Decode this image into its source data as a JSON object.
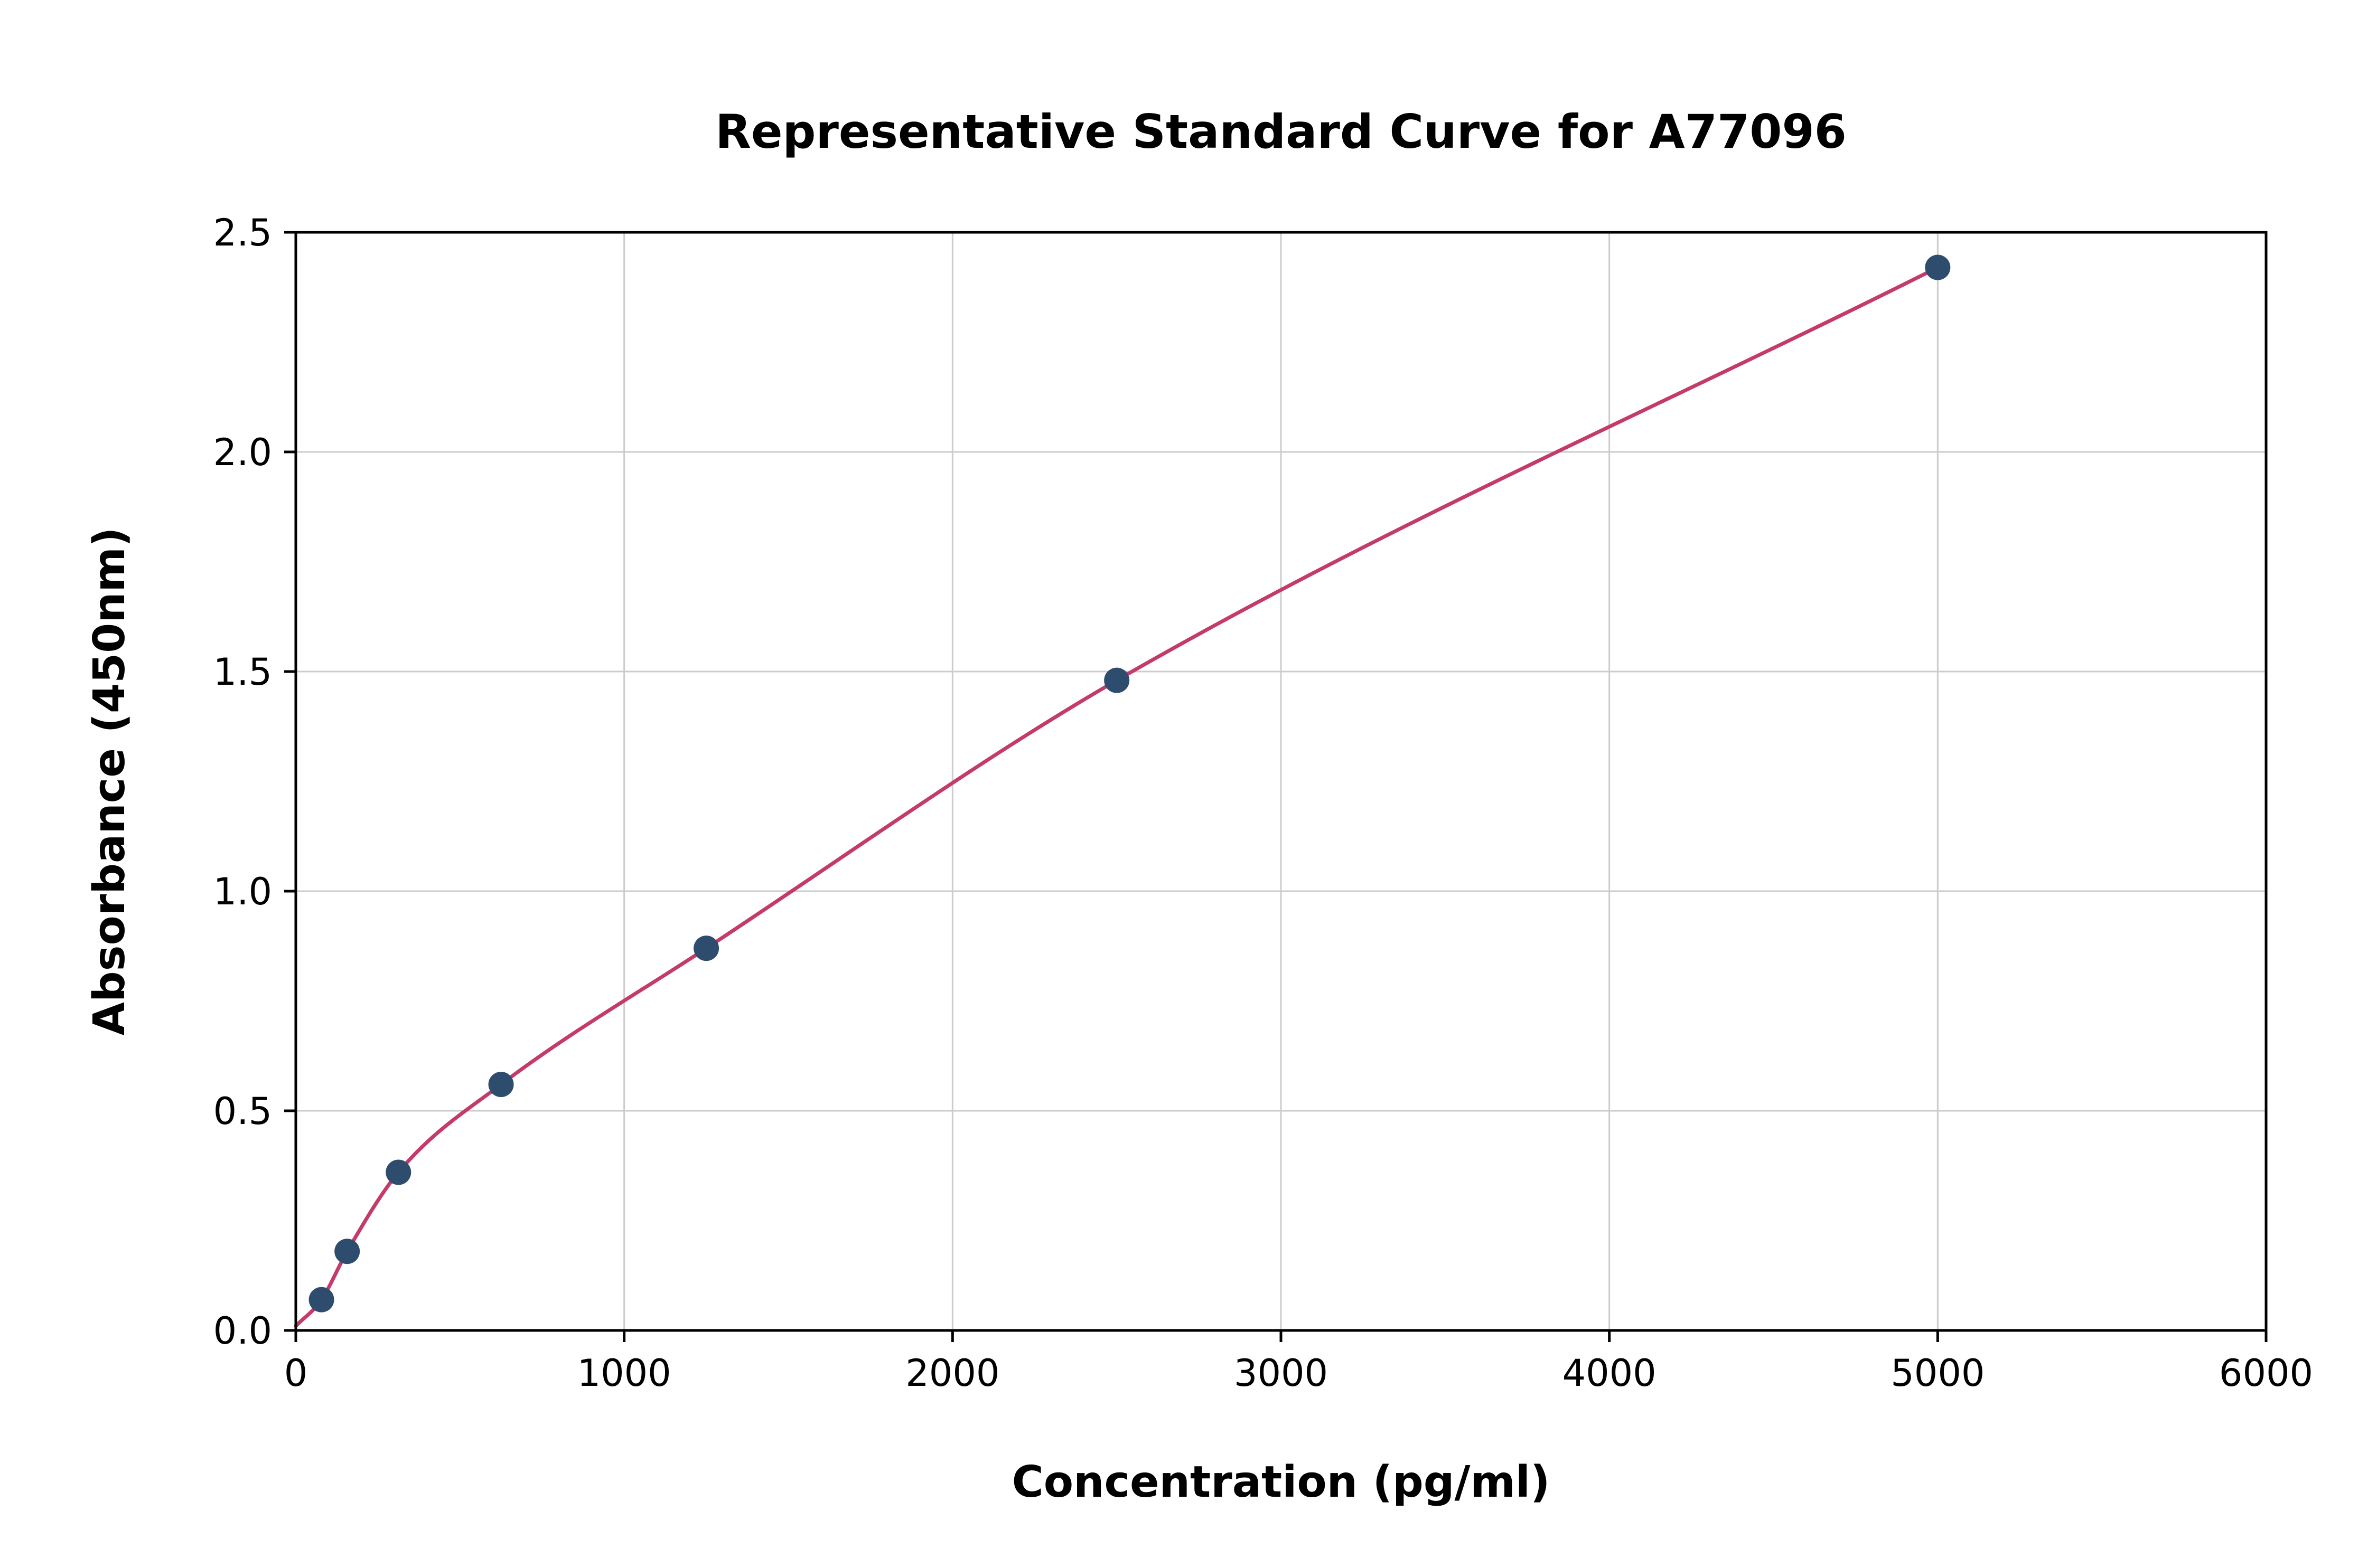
{
  "chart_data": {
    "type": "scatter",
    "title": "Representative Standard Curve for A77096",
    "xlabel": "Concentration (pg/ml)",
    "ylabel": "Absorbance (450nm)",
    "xlim": [
      0,
      6000
    ],
    "ylim": [
      0,
      2.5
    ],
    "grid": true,
    "legend": "none",
    "xtick_values": [
      0,
      1000,
      2000,
      3000,
      4000,
      5000,
      6000
    ],
    "xtick_labels": [
      "0",
      "1000",
      "2000",
      "3000",
      "4000",
      "5000",
      "6000"
    ],
    "ytick_values": [
      0.0,
      0.5,
      1.0,
      1.5,
      2.0,
      2.5
    ],
    "ytick_labels": [
      "0.0",
      "0.5",
      "1.0",
      "1.5",
      "2.0",
      "2.5"
    ],
    "series": [
      {
        "name": "standards",
        "kind": "scatter-points",
        "x": [
          78.1,
          156.3,
          312.5,
          625,
          1250,
          2500,
          5000
        ],
        "y": [
          0.07,
          0.18,
          0.36,
          0.56,
          0.87,
          1.48,
          2.42
        ]
      },
      {
        "name": "fit-curve",
        "kind": "smooth-fit-line",
        "x": [
          0,
          78.1,
          156.3,
          312.5,
          625,
          1250,
          2500,
          5000
        ],
        "y": [
          0.01,
          0.07,
          0.18,
          0.36,
          0.56,
          0.87,
          1.48,
          2.42
        ]
      }
    ],
    "colors": {
      "point_color": "#2e4d6e",
      "curve_color": "#c43b6b",
      "grid_color": "#cccccc",
      "axis_color": "#000000",
      "text_color": "#000000",
      "background": "#ffffff"
    }
  }
}
